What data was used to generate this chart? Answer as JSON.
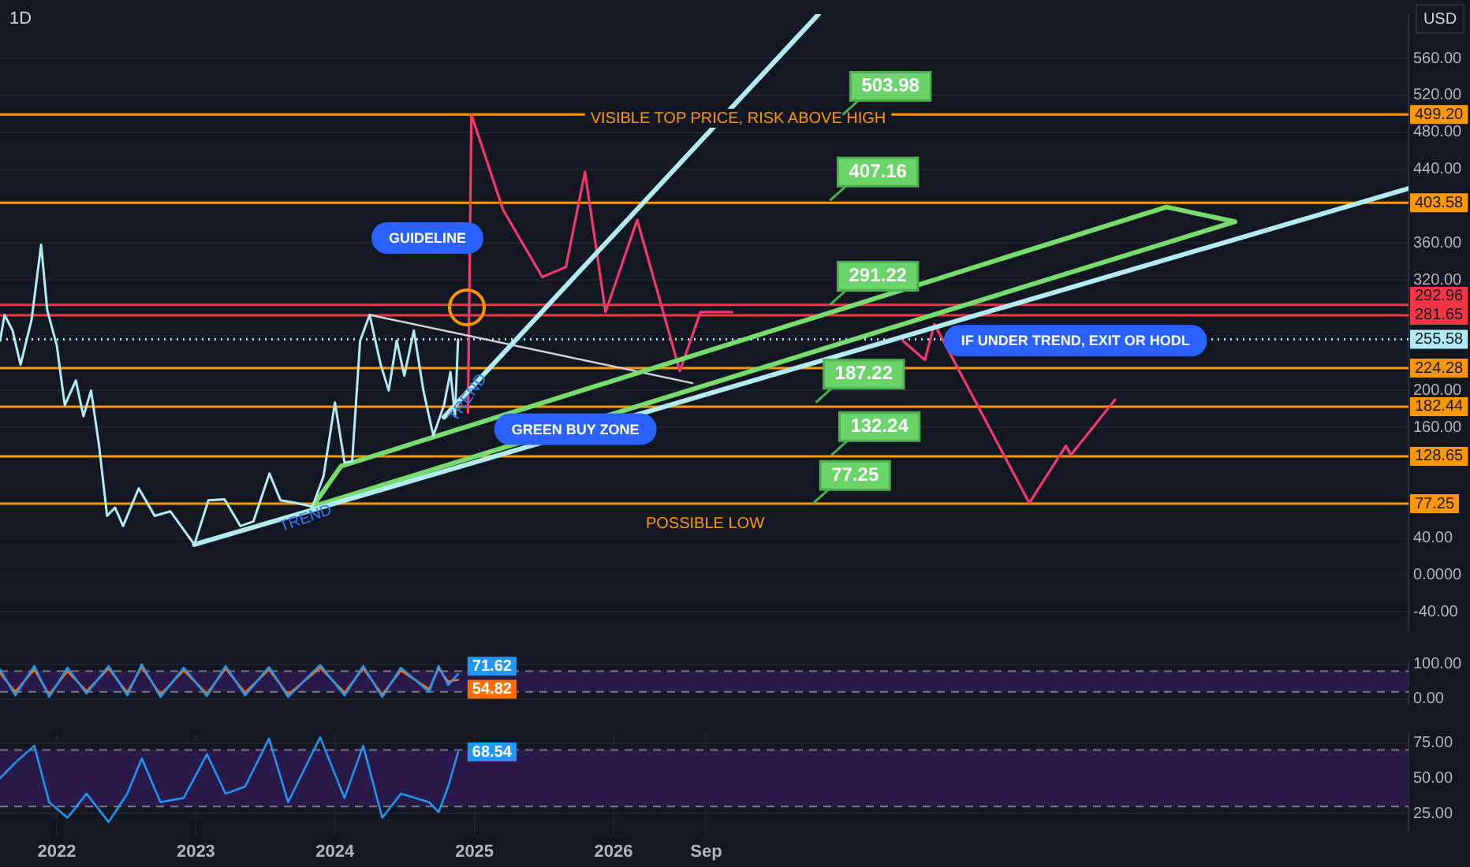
{
  "chart_data": [
    {
      "type": "line",
      "title": "1D",
      "ylabel": "USD",
      "marker": "none",
      "grid": true,
      "legend": false,
      "tick_labels": "y",
      "xlim": [
        "2021-08-05",
        "2031-09-18"
      ],
      "ylim": [
        -62,
        608
      ],
      "yticks": [
        {
          "value": 560,
          "label": "560.00"
        },
        {
          "value": 520,
          "label": "520.00"
        },
        {
          "value": 480,
          "label": "480.00"
        },
        {
          "value": 440,
          "label": "440.00"
        },
        {
          "value": 360,
          "label": "360.00"
        },
        {
          "value": 320,
          "label": "320.00"
        },
        {
          "value": 200,
          "label": "200.00"
        },
        {
          "value": 160,
          "label": "160.00"
        },
        {
          "value": 40,
          "label": "40.00"
        },
        {
          "value": 0,
          "label": "0.0000"
        },
        {
          "value": -40,
          "label": "-40.00"
        }
      ],
      "series": [
        {
          "color": "#b2ebf2",
          "x": [
            "2021-08-05",
            "2021-08-17",
            "2021-09-07",
            "2021-09-28",
            "2021-10-27",
            "2021-11-21",
            "2021-12-07",
            "2022-01-01",
            "2022-01-22",
            "2022-02-20",
            "2022-03-12",
            "2022-04-01",
            "2022-04-22",
            "2022-05-13",
            "2022-06-03",
            "2022-06-24",
            "2022-08-04",
            "2022-09-15",
            "2022-10-26",
            "2022-12-28",
            "2023-02-03",
            "2023-03-17",
            "2023-04-28",
            "2023-06-01",
            "2023-07-13",
            "2023-08-11",
            "2023-09-22",
            "2023-11-03",
            "2023-12-02",
            "2024-01-01",
            "2024-01-26",
            "2024-02-15",
            "2024-03-07",
            "2024-04-01",
            "2024-04-30",
            "2024-05-21",
            "2024-06-11",
            "2024-07-01",
            "2024-07-26",
            "2024-08-20",
            "2024-09-15",
            "2024-10-13",
            "2024-10-30",
            "2024-11-11",
            "2024-11-19"
          ],
          "values": [
            254,
            282,
            265,
            228,
            277,
            358,
            287,
            249,
            184,
            211,
            172,
            200,
            140,
            64,
            73,
            53,
            94,
            64,
            69,
            33,
            81,
            82,
            53,
            58,
            110,
            81,
            78,
            74,
            107,
            187,
            122,
            123,
            254,
            282,
            228,
            200,
            254,
            216,
            265,
            200,
            151,
            184,
            220,
            172,
            255.58
          ]
        },
        {
          "color": "#b2ebf2",
          "x": [
            "2022-12-28",
            "2031-09-18"
          ],
          "values": [
            33,
            419
          ]
        },
        {
          "color": "#b2ebf2",
          "x": [
            "2024-10-13",
            "2027-06-23"
          ],
          "values": [
            171,
            608
          ]
        },
        {
          "color": "#76dd6c",
          "x": [
            "2023-11-03",
            "2024-01-17",
            "2029-12-22",
            "2030-06-19"
          ],
          "values": [
            74,
            118,
            399,
            383
          ]
        },
        {
          "color": "#76dd6c",
          "x": [
            "2023-11-03",
            "2030-06-19"
          ],
          "values": [
            74,
            383
          ]
        },
        {
          "color": "#d1d4dc",
          "x": [
            "2024-04-01",
            "2026-07-27"
          ],
          "values": [
            282,
            208
          ]
        },
        {
          "color": "#f23a6e",
          "x": [
            "2024-12-15",
            "2024-12-24",
            "2025-03-17",
            "2025-06-28",
            "2025-08-29",
            "2025-10-18",
            "2025-12-11",
            "2026-03-04",
            "2026-06-24",
            "2026-08-17",
            "2026-11-08"
          ],
          "values": [
            176,
            499,
            396,
            323,
            334,
            437,
            285,
            385,
            221,
            285,
            285
          ]
        },
        {
          "color": "#f23a6e",
          "x": [
            "2028-01-30",
            "2028-03-28",
            "2028-04-22",
            "2028-12-27",
            "2029-04-02",
            "2029-04-15",
            "2029-08-09"
          ],
          "values": [
            254,
            233,
            272,
            78,
            140,
            130,
            190
          ]
        }
      ],
      "ref_lines": [
        {
          "axis": "y",
          "value": 499.2,
          "label": "499.20",
          "color": "#ff9800",
          "line_style": "solid"
        },
        {
          "axis": "y",
          "value": 403.58,
          "label": "403.58",
          "color": "#ff9800",
          "line_style": "solid"
        },
        {
          "axis": "y",
          "value": 292.96,
          "label": "292.96",
          "color": "#f23645",
          "line_style": "solid"
        },
        {
          "axis": "y",
          "value": 281.65,
          "label": "281.65",
          "color": "#f23645",
          "line_style": "solid"
        },
        {
          "axis": "y",
          "value": 255.58,
          "label": "255.58",
          "color": "#b2ebf2",
          "line_style": "dotted"
        },
        {
          "axis": "y",
          "value": 224.28,
          "label": "224.28",
          "color": "#ff9800",
          "line_style": "solid"
        },
        {
          "axis": "y",
          "value": 182.44,
          "label": "182.44",
          "color": "#ff9800",
          "line_style": "solid"
        },
        {
          "axis": "y",
          "value": 128.65,
          "label": "128.65",
          "color": "#ff9800",
          "line_style": "solid"
        },
        {
          "axis": "y",
          "value": 77.25,
          "label": "77.25",
          "color": "#ff9800",
          "line_style": "solid"
        }
      ],
      "annotations": [
        "VISIBLE TOP PRICE, RISK ABOVE HIGH",
        "POSSIBLE LOW",
        "GUIDELINE",
        {
          "text": "GREEN BUY ZONE",
          "x": "2025-09-23",
          "y": 158
        },
        {
          "text": "IF UNDER TREND, EXIT OR HODL",
          "x": "2029-04-27",
          "y": 254
        },
        {
          "text": "TREND",
          "x": "2023-10-16",
          "y": 61
        },
        {
          "text": "TREND",
          "x": "2024-12-15",
          "y": 192
        },
        {
          "text": "503.98",
          "x": "2027-08-25",
          "y": 499
        },
        {
          "text": "407.16",
          "x": "2027-07-23",
          "y": 406
        },
        {
          "text": "291.22",
          "x": "2027-07-23",
          "y": 293
        },
        {
          "text": "187.22",
          "x": "2027-06-16",
          "y": 187
        },
        {
          "text": "132.24",
          "x": "2027-07-27",
          "y": 130
        },
        {
          "text": "77.25",
          "x": "2027-06-07",
          "y": 77
        }
      ]
    },
    {
      "type": "line",
      "marker": "none",
      "grid": true,
      "legend": false,
      "tick_labels": "y",
      "xlim": [
        "2021-08-05",
        "2031-09-18"
      ],
      "ylim": [
        -17,
        111
      ],
      "yticks": [
        {
          "value": 100,
          "label": "100.00"
        },
        {
          "value": 0,
          "label": "0.00"
        }
      ],
      "series": [
        {
          "color": "#2196f3",
          "x": [
            "2021-08-05",
            "2021-09-14",
            "2021-11-03",
            "2021-12-12",
            "2022-01-29",
            "2022-03-20",
            "2022-05-17",
            "2022-07-05",
            "2022-08-12",
            "2022-09-30",
            "2022-11-30",
            "2023-01-30",
            "2023-03-20",
            "2023-05-10",
            "2023-07-12",
            "2023-08-31",
            "2023-11-23",
            "2024-01-26",
            "2024-03-15",
            "2024-05-04",
            "2024-06-22",
            "2024-09-04",
            "2024-09-29",
            "2024-10-24",
            "2024-11-19"
          ],
          "values": [
            85,
            10,
            95,
            5,
            90,
            15,
            95,
            10,
            100,
            5,
            90,
            8,
            95,
            10,
            92,
            5,
            98,
            10,
            95,
            5,
            90,
            20,
            95,
            40,
            71.62
          ],
          "value_labels": [
            null,
            null,
            null,
            null,
            null,
            null,
            null,
            null,
            null,
            null,
            null,
            null,
            null,
            null,
            null,
            null,
            null,
            null,
            null,
            null,
            null,
            null,
            null,
            null,
            "71.62"
          ]
        },
        {
          "color": "#ff6d00",
          "x": [
            "2021-08-05",
            "2021-09-14",
            "2021-11-03",
            "2021-12-12",
            "2022-01-29",
            "2022-03-20",
            "2022-05-17",
            "2022-07-05",
            "2022-08-12",
            "2022-09-30",
            "2022-11-30",
            "2023-01-30",
            "2023-03-20",
            "2023-05-10",
            "2023-07-12",
            "2023-08-31",
            "2023-11-23",
            "2024-01-26",
            "2024-03-15",
            "2024-05-04",
            "2024-06-22",
            "2024-09-04",
            "2024-09-29",
            "2024-10-24",
            "2024-11-19"
          ],
          "values": [
            75,
            20,
            85,
            12,
            80,
            22,
            88,
            18,
            92,
            12,
            82,
            15,
            88,
            18,
            85,
            12,
            90,
            18,
            88,
            12,
            82,
            28,
            88,
            50,
            54.82
          ],
          "value_labels": [
            null,
            null,
            null,
            null,
            null,
            null,
            null,
            null,
            null,
            null,
            null,
            null,
            null,
            null,
            null,
            null,
            null,
            null,
            null,
            null,
            null,
            null,
            null,
            null,
            "54.82"
          ]
        }
      ],
      "ref_lines": [
        {
          "axis": "y",
          "value": 80,
          "color": "#787b86",
          "line_style": "dashed"
        },
        {
          "axis": "y",
          "value": 20,
          "color": "#787b86",
          "line_style": "dashed"
        }
      ],
      "bands": [
        {
          "axis": "y",
          "from": 20,
          "to": 80,
          "color": "#2a1a4a"
        }
      ]
    },
    {
      "type": "line",
      "marker": "none",
      "grid": true,
      "legend": false,
      "xlim": [
        "2021-08-05",
        "2031-09-18"
      ],
      "ylim": [
        13,
        82
      ],
      "xticks": [
        "2022",
        "2023",
        "2024",
        "2025",
        "2026",
        {
          "value": "2026-09",
          "label": "Sep"
        }
      ],
      "yticks": [
        {
          "value": 75,
          "label": "75.00"
        },
        {
          "value": 50,
          "label": "50.00"
        },
        {
          "value": 25,
          "label": "25.00"
        }
      ],
      "series": [
        {
          "color": "#2196f3",
          "x": [
            "2021-08-05",
            "2021-09-14",
            "2021-11-03",
            "2021-12-12",
            "2022-01-29",
            "2022-03-20",
            "2022-05-17",
            "2022-07-05",
            "2022-08-12",
            "2022-09-30",
            "2022-11-30",
            "2023-01-30",
            "2023-03-20",
            "2023-05-10",
            "2023-07-12",
            "2023-08-31",
            "2023-11-23",
            "2024-01-26",
            "2024-03-15",
            "2024-05-04",
            "2024-06-22",
            "2024-09-04",
            "2024-09-29",
            "2024-10-24",
            "2024-11-19"
          ],
          "values": [
            50,
            61,
            73,
            33,
            22,
            39,
            19,
            39,
            64,
            33,
            36,
            67,
            39,
            44,
            78,
            33,
            79,
            36,
            73,
            22,
            39,
            33,
            26,
            44,
            68.54
          ],
          "value_labels": [
            null,
            null,
            null,
            null,
            null,
            null,
            null,
            null,
            null,
            null,
            null,
            null,
            null,
            null,
            null,
            null,
            null,
            null,
            null,
            null,
            null,
            null,
            null,
            null,
            "68.54"
          ]
        }
      ],
      "ref_lines": [
        {
          "axis": "y",
          "value": 70,
          "color": "#787b86",
          "line_style": "dashed"
        },
        {
          "axis": "y",
          "value": 30,
          "color": "#787b86",
          "line_style": "dashed"
        }
      ],
      "bands": [
        {
          "axis": "y",
          "from": 30,
          "to": 70,
          "color": "#2a1a4a"
        }
      ]
    }
  ]
}
